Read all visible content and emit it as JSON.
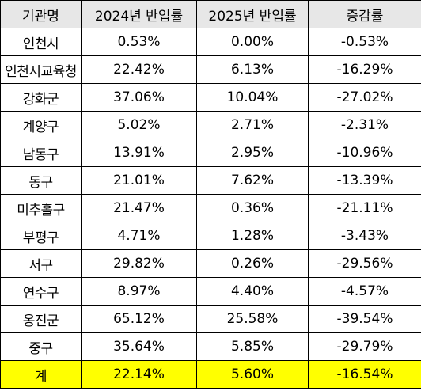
{
  "header": {
    "org": "기관명",
    "rate2024": "2024년 반입률",
    "rate2025": "2025년 반입률",
    "change": "증감률"
  },
  "rows": [
    {
      "org": "인천시",
      "rate2024": "0.53%",
      "rate2025": "0.00%",
      "change": "-0.53%"
    },
    {
      "org": "인천시교육청",
      "rate2024": "22.42%",
      "rate2025": "6.13%",
      "change": "-16.29%"
    },
    {
      "org": "강화군",
      "rate2024": "37.06%",
      "rate2025": "10.04%",
      "change": "-27.02%"
    },
    {
      "org": "계양구",
      "rate2024": "5.02%",
      "rate2025": "2.71%",
      "change": "-2.31%"
    },
    {
      "org": "남동구",
      "rate2024": "13.91%",
      "rate2025": "2.95%",
      "change": "-10.96%"
    },
    {
      "org": "동구",
      "rate2024": "21.01%",
      "rate2025": "7.62%",
      "change": "-13.39%"
    },
    {
      "org": "미추홀구",
      "rate2024": "21.47%",
      "rate2025": "0.36%",
      "change": "-21.11%"
    },
    {
      "org": "부평구",
      "rate2024": "4.71%",
      "rate2025": "1.28%",
      "change": "-3.43%"
    },
    {
      "org": "서구",
      "rate2024": "29.82%",
      "rate2025": "0.26%",
      "change": "-29.56%"
    },
    {
      "org": "연수구",
      "rate2024": "8.97%",
      "rate2025": "4.40%",
      "change": "-4.57%"
    },
    {
      "org": "옹진군",
      "rate2024": "65.12%",
      "rate2025": "25.58%",
      "change": "-39.54%"
    },
    {
      "org": "중구",
      "rate2024": "35.64%",
      "rate2025": "5.85%",
      "change": "-29.79%"
    }
  ],
  "total": {
    "org": "계",
    "rate2024": "22.14%",
    "rate2025": "5.60%",
    "change": "-16.54%"
  },
  "colors": {
    "header_bg": "#e7e7e7",
    "total_bg": "#ffff00",
    "border": "#000000"
  }
}
